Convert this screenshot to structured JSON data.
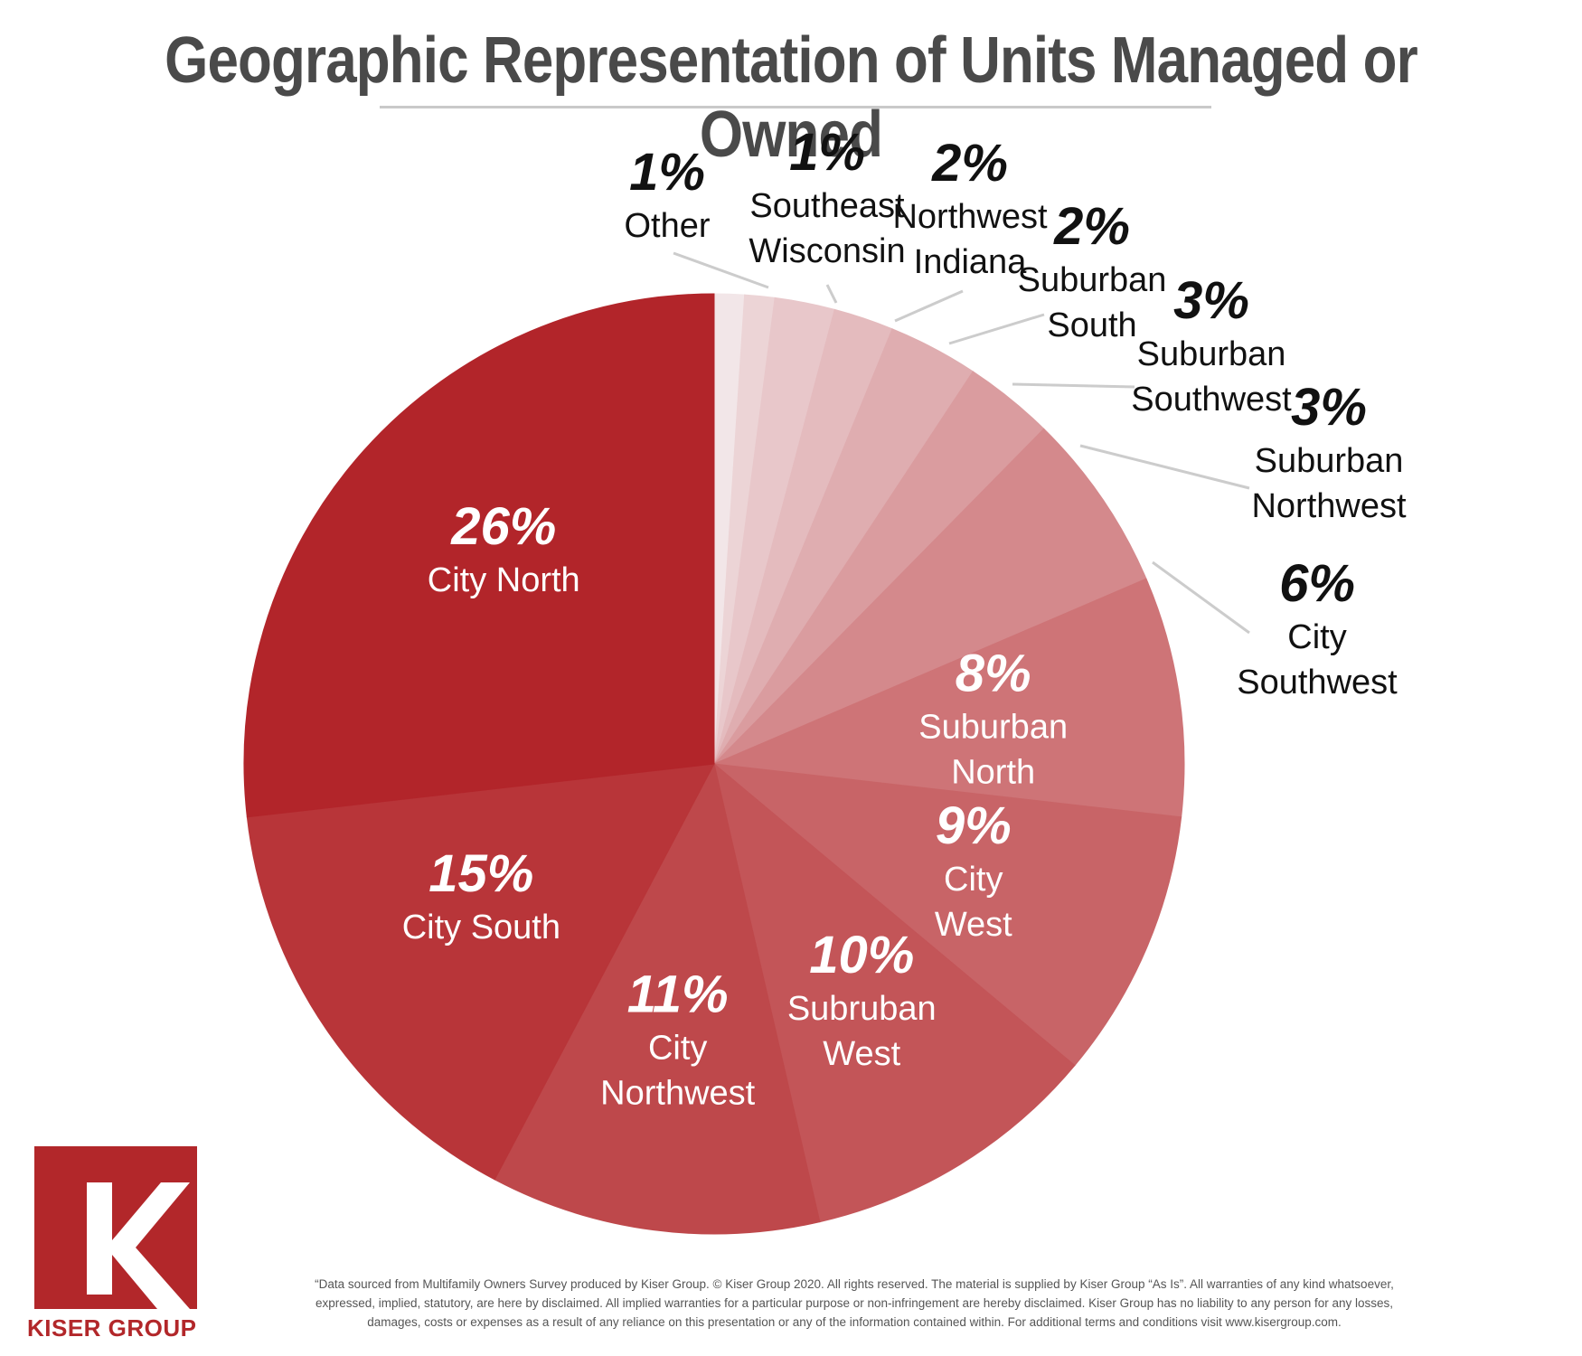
{
  "title": "Geographic Representation of Units Managed or Owned",
  "chart_data": {
    "type": "pie",
    "start_angle_deg": 0,
    "direction": "clockwise",
    "slices": [
      {
        "name": "Other",
        "value": 1,
        "pct_label": "1%",
        "label_lines": [
          "Other"
        ],
        "color": "#f2e6e8",
        "inside": false
      },
      {
        "name": "Southeast Wisconsin",
        "value": 1,
        "pct_label": "1%",
        "label_lines": [
          "Southeast",
          "Wisconsin"
        ],
        "color": "#ecd4d6",
        "inside": false
      },
      {
        "name": "Northwest Indiana",
        "value": 2,
        "pct_label": "2%",
        "label_lines": [
          "Northwest",
          "Indiana"
        ],
        "color": "#e8c7ca",
        "inside": false
      },
      {
        "name": "Suburban South",
        "value": 2,
        "pct_label": "2%",
        "label_lines": [
          "Suburban",
          "South"
        ],
        "color": "#e4bbbe",
        "inside": false
      },
      {
        "name": "Suburban Southwest",
        "value": 3,
        "pct_label": "3%",
        "label_lines": [
          "Suburban",
          "Southwest"
        ],
        "color": "#dfadb0",
        "inside": false
      },
      {
        "name": "Suburban Northwest",
        "value": 3,
        "pct_label": "3%",
        "label_lines": [
          "Suburban",
          "Northwest"
        ],
        "color": "#da9c9f",
        "inside": false
      },
      {
        "name": "City Southwest",
        "value": 6,
        "pct_label": "6%",
        "label_lines": [
          "City",
          "Southwest"
        ],
        "color": "#d4898c",
        "inside": false
      },
      {
        "name": "Suburban North",
        "value": 8,
        "pct_label": "8%",
        "label_lines": [
          "Suburban",
          "North"
        ],
        "color": "#ce7477",
        "inside": true
      },
      {
        "name": "City West",
        "value": 9,
        "pct_label": "9%",
        "label_lines": [
          "City",
          "West"
        ],
        "color": "#c86467",
        "inside": true
      },
      {
        "name": "Subruban West",
        "value": 10,
        "pct_label": "10%",
        "label_lines": [
          "Subruban",
          "West"
        ],
        "color": "#c35558",
        "inside": true
      },
      {
        "name": "City Northwest",
        "value": 11,
        "pct_label": "11%",
        "label_lines": [
          "City",
          "Northwest"
        ],
        "color": "#be484b",
        "inside": true
      },
      {
        "name": "City South",
        "value": 15,
        "pct_label": "15%",
        "label_lines": [
          "City South"
        ],
        "color": "#b83539",
        "inside": true
      },
      {
        "name": "City North",
        "value": 26,
        "pct_label": "26%",
        "label_lines": [
          "City North"
        ],
        "color": "#b2252a",
        "inside": true
      }
    ]
  },
  "logo": {
    "letter": "K",
    "name": "KISER GROUP"
  },
  "footnote": "“Data sourced from Multifamily Owners Survey produced by Kiser Group. © Kiser Group 2020. All rights reserved. The material is supplied by Kiser Group “As Is”. All warranties of any kind whatsoever, expressed, implied, statutory, are here by disclaimed. All implied warranties for a particular purpose or non-infringement are hereby disclaimed. Kiser Group has no liability to any person for any losses, damages, costs or expenses as a result of any reliance on this presentation or any of the information contained within. For additional terms and conditions visit www.kisergroup.com."
}
